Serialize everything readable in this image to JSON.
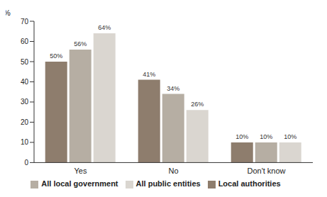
{
  "chart_data": {
    "type": "bar",
    "y_label": "%",
    "categories": [
      "Yes",
      "No",
      "Don't know"
    ],
    "series": [
      {
        "name": "Local authorities",
        "color": "#8e7d6d",
        "values": [
          50,
          41,
          10
        ],
        "value_labels": [
          "50%",
          "41%",
          "10%"
        ]
      },
      {
        "name": "All local government",
        "color": "#b6aea3",
        "values": [
          56,
          34,
          10
        ],
        "value_labels": [
          "56%",
          "34%",
          "10%"
        ]
      },
      {
        "name": "All public entities",
        "color": "#dad6d0",
        "values": [
          64,
          26,
          10
        ],
        "value_labels": [
          "64%",
          "26%",
          "10%"
        ]
      }
    ],
    "ylim": [
      0,
      70
    ],
    "yticks": [
      0,
      10,
      20,
      30,
      40,
      50,
      60,
      70
    ],
    "grid": false,
    "data_labels": true,
    "legend": "bottom"
  }
}
